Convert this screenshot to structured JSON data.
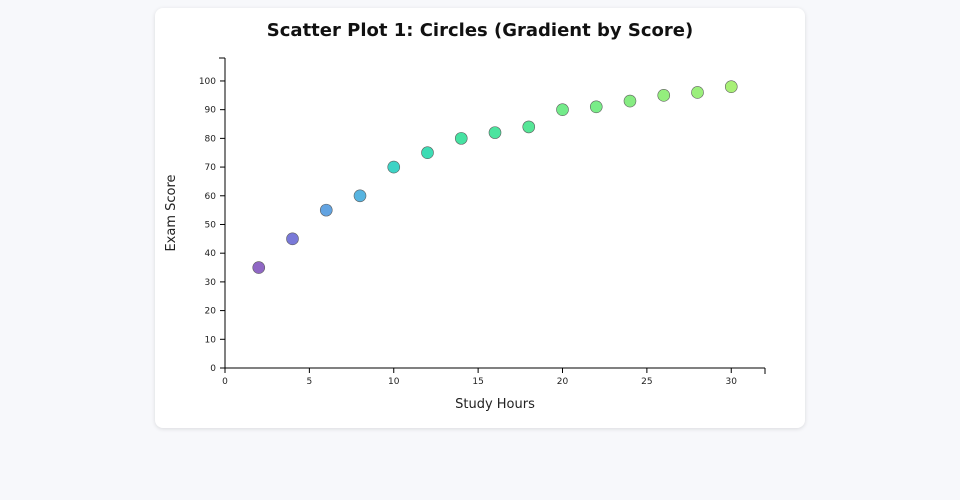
{
  "chart_data": {
    "type": "scatter",
    "title": "Scatter Plot 1: Circles (Gradient by Score)",
    "xlabel": "Study Hours",
    "ylabel": "Exam Score",
    "xlim": [
      0,
      32
    ],
    "ylim": [
      0,
      108
    ],
    "x_ticks": [
      0,
      5,
      10,
      15,
      20,
      25,
      30
    ],
    "y_ticks": [
      0,
      10,
      20,
      30,
      40,
      50,
      60,
      70,
      80,
      90,
      100
    ],
    "grid": false,
    "legend": "none",
    "color_gradient": [
      "#7b5cc0",
      "#2fd6c0",
      "#a8ee70"
    ],
    "points": [
      {
        "x": 2,
        "y": 35,
        "color": "#8a5fc1"
      },
      {
        "x": 4,
        "y": 45,
        "color": "#7272d6"
      },
      {
        "x": 6,
        "y": 55,
        "color": "#5a9fe0"
      },
      {
        "x": 8,
        "y": 60,
        "color": "#4fb0df"
      },
      {
        "x": 10,
        "y": 70,
        "color": "#33d1c2"
      },
      {
        "x": 12,
        "y": 75,
        "color": "#33dbb0"
      },
      {
        "x": 14,
        "y": 80,
        "color": "#3de19e"
      },
      {
        "x": 16,
        "y": 82,
        "color": "#43e39a"
      },
      {
        "x": 18,
        "y": 84,
        "color": "#4de592"
      },
      {
        "x": 20,
        "y": 90,
        "color": "#6cea84"
      },
      {
        "x": 22,
        "y": 91,
        "color": "#72eb82"
      },
      {
        "x": 24,
        "y": 93,
        "color": "#80ec7c"
      },
      {
        "x": 26,
        "y": 95,
        "color": "#8fee77"
      },
      {
        "x": 28,
        "y": 96,
        "color": "#96ef75"
      },
      {
        "x": 30,
        "y": 98,
        "color": "#a4f06f"
      }
    ]
  }
}
